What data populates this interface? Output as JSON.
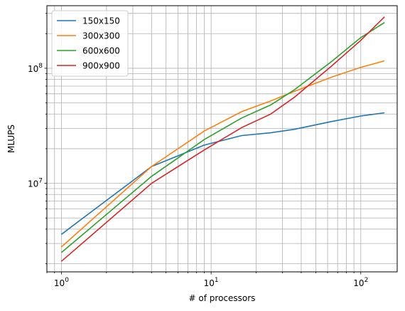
{
  "chart_data": {
    "type": "line",
    "xscale": "log",
    "yscale": "log",
    "xlabel": "# of processors",
    "ylabel": "MLUPS",
    "xlim": [
      0.8,
      175
    ],
    "ylim": [
      1700000,
      350000000
    ],
    "grid": true,
    "legend_position": "top-left",
    "x_ticks": [
      {
        "value": 1,
        "base": "10",
        "exp": "0"
      },
      {
        "value": 10,
        "base": "10",
        "exp": "1"
      },
      {
        "value": 100,
        "base": "10",
        "exp": "2"
      }
    ],
    "y_ticks": [
      {
        "value": 10000000,
        "base": "10",
        "exp": "7"
      },
      {
        "value": 100000000,
        "base": "10",
        "exp": "8"
      }
    ],
    "x": [
      1,
      4,
      9,
      16,
      25,
      36,
      64,
      100,
      144
    ],
    "series": [
      {
        "name": "150x150",
        "color": "#1f77b4",
        "values": [
          3600000,
          14000000,
          21500000,
          26000000,
          27500000,
          29500000,
          34500000,
          38500000,
          41000000
        ]
      },
      {
        "name": "300x300",
        "color": "#ff7f0e",
        "values": [
          2800000,
          14000000,
          28500000,
          42000000,
          52000000,
          63000000,
          84000000,
          102000000,
          116000000
        ]
      },
      {
        "name": "600x600",
        "color": "#2ca02c",
        "values": [
          2500000,
          11500000,
          24000000,
          37000000,
          48000000,
          65000000,
          115000000,
          185000000,
          250000000
        ]
      },
      {
        "name": "900x900",
        "color": "#d62728",
        "values": [
          2100000,
          10000000,
          19500000,
          30500000,
          40000000,
          56000000,
          105000000,
          175000000,
          280000000
        ]
      }
    ]
  }
}
